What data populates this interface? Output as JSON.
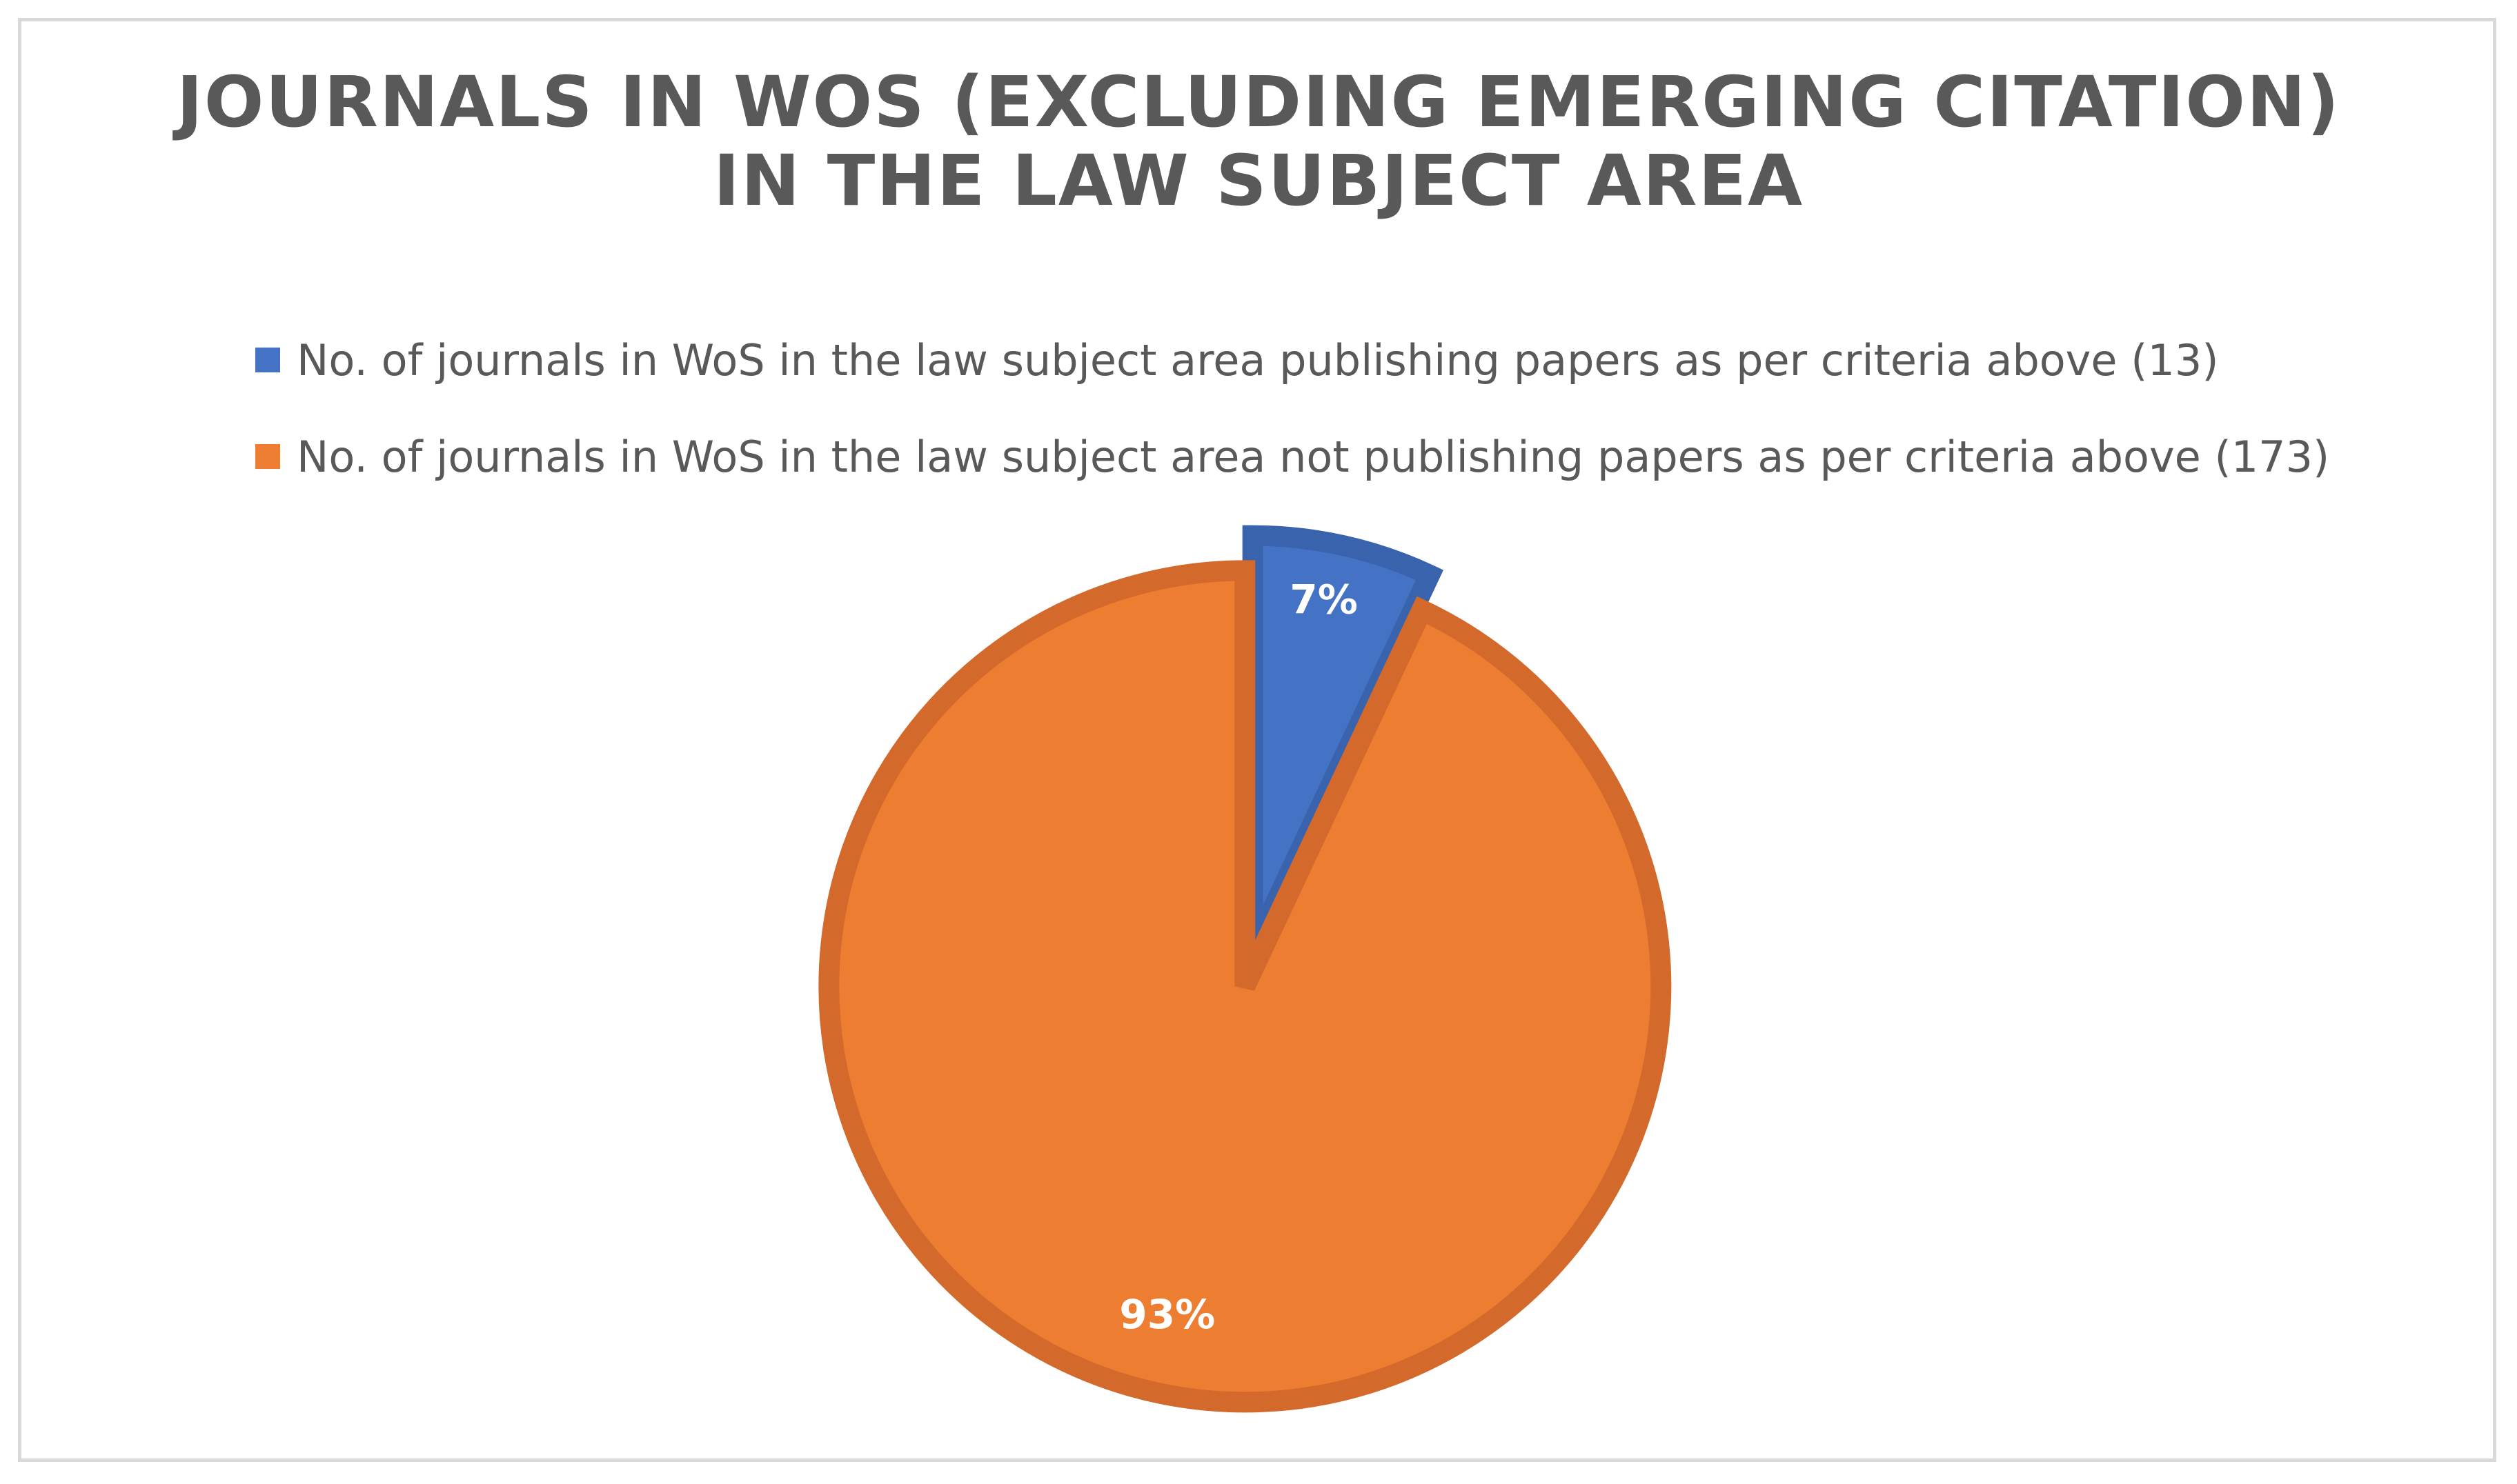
{
  "chart_data": {
    "type": "pie",
    "title": "JOURNALS IN WOS (EXCLUDING EMERGING CITATION)\nIN THE LAW SUBJECT AREA",
    "legend_position": "top",
    "slices": [
      {
        "name": "No. of journals in WoS in the law subject area publishing papers as per criteria above (13)",
        "value": 13,
        "label": "7%",
        "color": "#4472c4",
        "border_color": "#3a63ad"
      },
      {
        "name": "No. of journals in WoS in the law subject area not publishing papers as per criteria above (173)",
        "value": 173,
        "label": "93%",
        "color": "#ed7d31",
        "border_color": "#d3692a"
      }
    ]
  }
}
